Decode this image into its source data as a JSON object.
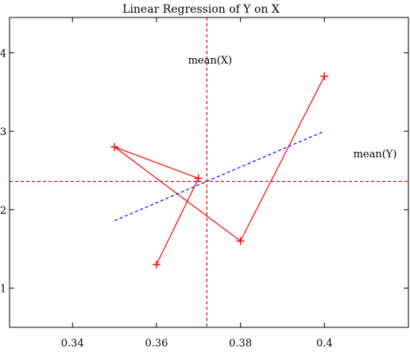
{
  "chart_data": {
    "type": "line",
    "title": "Linear Regression of Y on X",
    "xlabel": "",
    "ylabel": "",
    "xlim": [
      0.325,
      0.42
    ],
    "ylim": [
      0.5,
      4.45
    ],
    "x_ticks": [
      0.34,
      0.36,
      0.38,
      0.4
    ],
    "x_tick_labels": [
      "0.34",
      "0.36",
      "0.38",
      "0.4"
    ],
    "y_ticks": [
      1,
      2,
      3,
      4
    ],
    "y_tick_labels": [
      "1",
      "2",
      "3",
      "4"
    ],
    "grid": false,
    "series": [
      {
        "style": "solid-with-plus-markers",
        "color": "#ff0000",
        "x": [
          0.36,
          0.37,
          0.35,
          0.38,
          0.4
        ],
        "y": [
          1.3,
          2.4,
          2.8,
          1.6,
          3.7
        ]
      },
      {
        "style": "dashed",
        "color": "#0000ff",
        "x": [
          0.35,
          0.4
        ],
        "y": [
          1.86,
          3.0
        ]
      }
    ],
    "reference_lines": [
      {
        "orientation": "vertical",
        "value": 0.372,
        "color": "#ff0000",
        "style": "dashed",
        "label": "mean(X)"
      },
      {
        "orientation": "horizontal",
        "value": 2.36,
        "color": "#ff0000",
        "style": "dashed",
        "label": "mean(Y)"
      }
    ]
  }
}
